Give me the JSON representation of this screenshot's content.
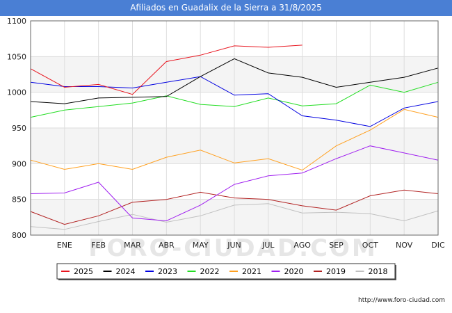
{
  "title": "Afiliados en Guadalix de la Sierra a 31/8/2025",
  "watermark": "FORO-CIUDAD.COM",
  "footer": "http://www.foro-ciudad.com",
  "chart_data": {
    "type": "line",
    "title": "Afiliados en Guadalix de la Sierra a 31/8/2025",
    "categories": [
      "",
      "ENE",
      "FEB",
      "MAR",
      "ABR",
      "MAY",
      "JUN",
      "JUL",
      "AGO",
      "SEP",
      "OCT",
      "NOV",
      "DIC"
    ],
    "ylim": [
      800,
      1100
    ],
    "yticks": [
      800,
      850,
      900,
      950,
      1000,
      1050,
      1100
    ],
    "grid": true,
    "legend_position": "bottom",
    "series": [
      {
        "name": "2025",
        "color": "#e8141e",
        "values": [
          1033,
          1007,
          1011,
          997,
          1043,
          1052,
          1065,
          1063,
          1066,
          null,
          null,
          null,
          null
        ]
      },
      {
        "name": "2024",
        "color": "#000000",
        "values": [
          987,
          984,
          992,
          993,
          994,
          1022,
          1047,
          1027,
          1021,
          1007,
          1014,
          1021,
          1034
        ]
      },
      {
        "name": "2023",
        "color": "#0000e0",
        "values": [
          1014,
          1008,
          1008,
          1006,
          1014,
          1022,
          996,
          998,
          967,
          961,
          952,
          978,
          987
        ]
      },
      {
        "name": "2022",
        "color": "#22dd22",
        "values": [
          965,
          975,
          980,
          985,
          995,
          983,
          980,
          992,
          981,
          984,
          1010,
          1000,
          1014
        ]
      },
      {
        "name": "2021",
        "color": "#ffa020",
        "values": [
          905,
          892,
          900,
          892,
          909,
          919,
          901,
          907,
          891,
          925,
          947,
          976,
          965
        ]
      },
      {
        "name": "2020",
        "color": "#a020f0",
        "values": [
          858,
          859,
          874,
          824,
          820,
          842,
          871,
          883,
          887,
          907,
          925,
          915,
          905
        ]
      },
      {
        "name": "2019",
        "color": "#b22222",
        "values": [
          833,
          815,
          827,
          846,
          850,
          860,
          852,
          850,
          841,
          835,
          855,
          863,
          858
        ]
      },
      {
        "name": "2018",
        "color": "#c0c0c0",
        "values": [
          812,
          808,
          819,
          829,
          818,
          827,
          842,
          844,
          831,
          832,
          830,
          820,
          834
        ]
      }
    ]
  }
}
